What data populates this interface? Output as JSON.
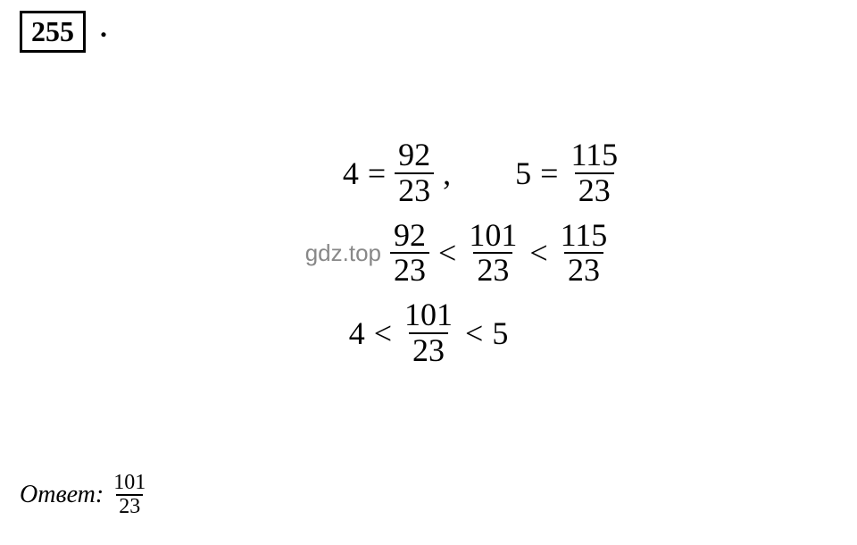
{
  "problem_number": "255",
  "period": ".",
  "row1": {
    "a": "4",
    "eq1": "=",
    "f1_num": "92",
    "f1_den": "23",
    "comma": ",",
    "b": "5",
    "eq2": "=",
    "f2_num": "115",
    "f2_den": "23"
  },
  "watermark": "gdz.top",
  "row2": {
    "f1_num": "92",
    "f1_den": "23",
    "lt1": "<",
    "f2_num": "101",
    "f2_den": "23",
    "lt2": "<",
    "f3_num": "115",
    "f3_den": "23"
  },
  "row3": {
    "a": "4",
    "lt1": "<",
    "f_num": "101",
    "f_den": "23",
    "lt2": "<",
    "b": "5"
  },
  "answer": {
    "label": "Ответ:",
    "num": "101",
    "den": "23"
  },
  "style": {
    "background": "#ffffff",
    "text_color": "#000000",
    "watermark_color": "#888888",
    "font_family": "Georgia, Times New Roman, serif",
    "math_fontsize": 36,
    "number_fontsize": 32,
    "answer_fontsize": 28,
    "fraction_small_fontsize": 24
  }
}
